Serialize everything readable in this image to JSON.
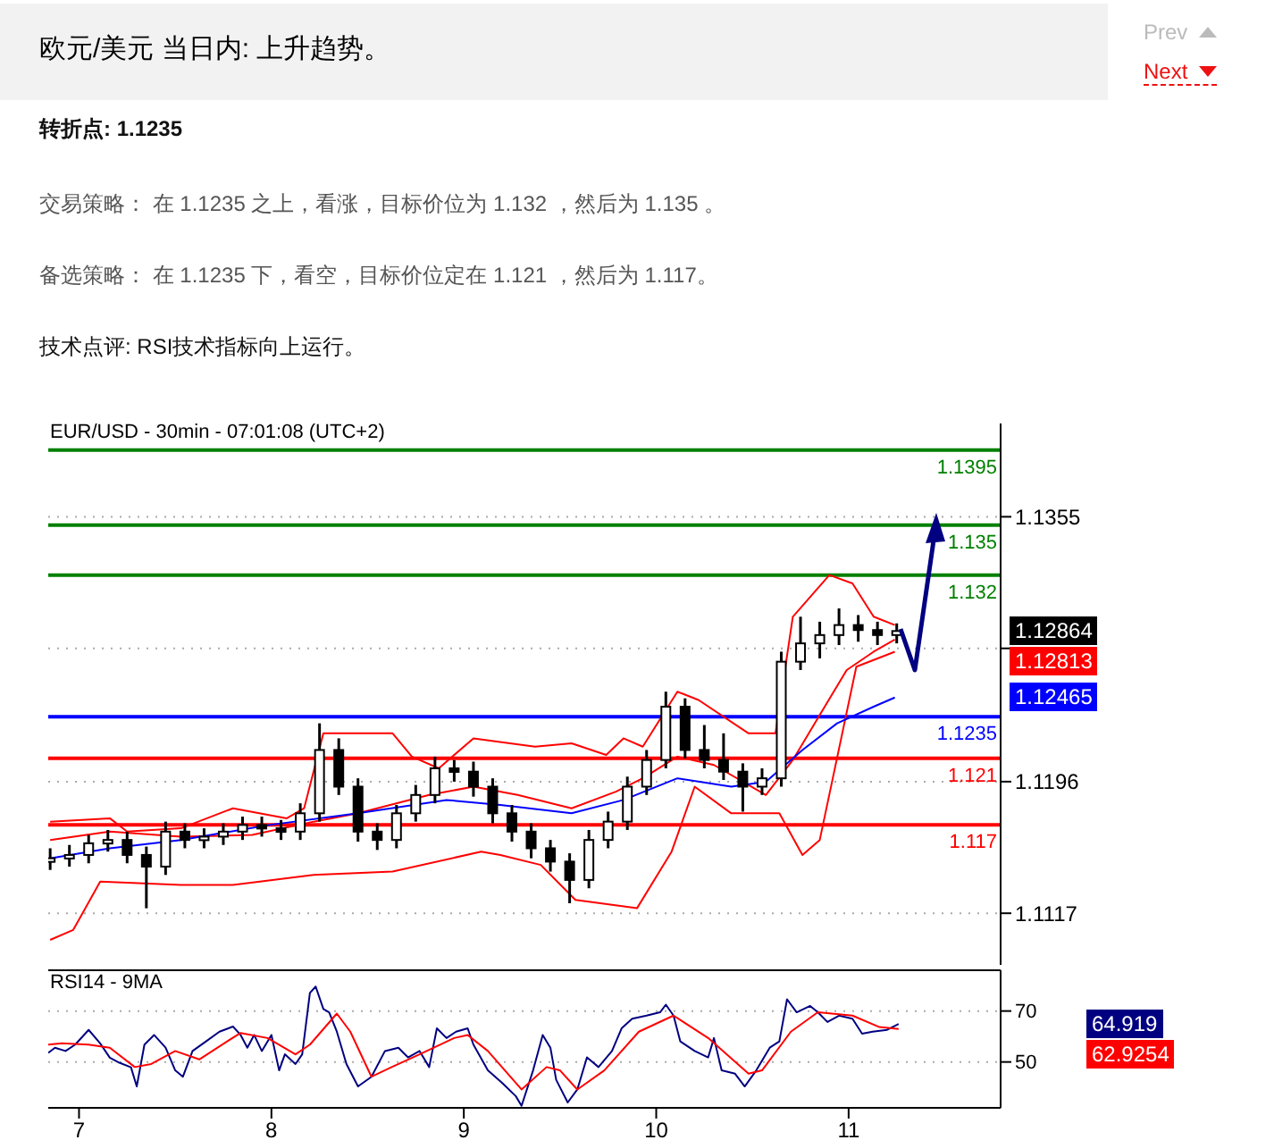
{
  "chart_data": [
    {
      "type": "candlestick",
      "title": "欧元/美元 当日内: 上升趋势。",
      "subtitle": "EUR/USD - 30min - 07:01:08 (UTC+2)",
      "annotations": [
        "转折点: 1.1235",
        "交易策略： 在 1.1235 之上，看涨，目标价位为 1.132 ，然后为 1.135 。",
        "备选策略： 在 1.1235 下，看空，目标价位定在 1.121 ，然后为 1.117。",
        "技术点评: RSI技术指标向上运行。",
        "Prev",
        "Next",
        "1.12864",
        "1.12813",
        "1.12465"
      ],
      "x": [
        6.85,
        6.95,
        7.05,
        7.15,
        7.25,
        7.35,
        7.45,
        7.55,
        7.65,
        7.75,
        7.85,
        7.95,
        8.05,
        8.15,
        8.25,
        8.35,
        8.45,
        8.55,
        8.65,
        8.75,
        8.85,
        8.95,
        9.05,
        9.15,
        9.25,
        9.35,
        9.45,
        9.55,
        9.65,
        9.75,
        9.85,
        9.95,
        10.05,
        10.15,
        10.25,
        10.35,
        10.45,
        10.55,
        10.65,
        10.75,
        10.85,
        10.95,
        11.05,
        11.15,
        11.25
      ],
      "ohlc": [
        [
          1.1148,
          1.1156,
          1.1143,
          1.115
        ],
        [
          1.115,
          1.1158,
          1.1145,
          1.1152
        ],
        [
          1.1152,
          1.1164,
          1.1147,
          1.1159
        ],
        [
          1.1159,
          1.1167,
          1.1154,
          1.1161
        ],
        [
          1.1161,
          1.1166,
          1.1147,
          1.1152
        ],
        [
          1.1152,
          1.1157,
          1.112,
          1.1145
        ],
        [
          1.1145,
          1.1172,
          1.114,
          1.1166
        ],
        [
          1.1166,
          1.1171,
          1.1156,
          1.1161
        ],
        [
          1.1161,
          1.1168,
          1.1156,
          1.1163
        ],
        [
          1.1163,
          1.1171,
          1.1158,
          1.1166
        ],
        [
          1.1166,
          1.1175,
          1.1161,
          1.117
        ],
        [
          1.117,
          1.1175,
          1.1163,
          1.1168
        ],
        [
          1.1168,
          1.1173,
          1.1161,
          1.1166
        ],
        [
          1.1166,
          1.1183,
          1.1161,
          1.1177
        ],
        [
          1.1177,
          1.1231,
          1.1172,
          1.1215
        ],
        [
          1.1215,
          1.1222,
          1.1188,
          1.1193
        ],
        [
          1.1193,
          1.1198,
          1.116,
          1.1166
        ],
        [
          1.1166,
          1.1171,
          1.1155,
          1.1161
        ],
        [
          1.1161,
          1.1182,
          1.1156,
          1.1177
        ],
        [
          1.1177,
          1.1194,
          1.1172,
          1.1188
        ],
        [
          1.1188,
          1.1211,
          1.1183,
          1.1204
        ],
        [
          1.1204,
          1.1209,
          1.1196,
          1.1202
        ],
        [
          1.1202,
          1.1208,
          1.1187,
          1.1193
        ],
        [
          1.1193,
          1.1198,
          1.1171,
          1.1177
        ],
        [
          1.1177,
          1.1182,
          1.116,
          1.1166
        ],
        [
          1.1166,
          1.1171,
          1.115,
          1.1156
        ],
        [
          1.1156,
          1.1161,
          1.1142,
          1.1148
        ],
        [
          1.1148,
          1.1153,
          1.1123,
          1.1137
        ],
        [
          1.1137,
          1.1167,
          1.1132,
          1.1161
        ],
        [
          1.1161,
          1.1178,
          1.1156,
          1.1172
        ],
        [
          1.1172,
          1.1199,
          1.1167,
          1.1193
        ],
        [
          1.1193,
          1.1215,
          1.1188,
          1.1209
        ],
        [
          1.1209,
          1.125,
          1.1204,
          1.1241
        ],
        [
          1.1241,
          1.1246,
          1.121,
          1.1215
        ],
        [
          1.1215,
          1.123,
          1.1204,
          1.1209
        ],
        [
          1.1209,
          1.1225,
          1.1197,
          1.1202
        ],
        [
          1.1202,
          1.1207,
          1.1178,
          1.1193
        ],
        [
          1.1193,
          1.1204,
          1.1188,
          1.1198
        ],
        [
          1.1198,
          1.1274,
          1.1193,
          1.1268
        ],
        [
          1.1268,
          1.1295,
          1.1263,
          1.1279
        ],
        [
          1.1279,
          1.1292,
          1.127,
          1.1284
        ],
        [
          1.1284,
          1.13,
          1.1278,
          1.129
        ],
        [
          1.129,
          1.1296,
          1.128,
          1.1287
        ],
        [
          1.1287,
          1.1292,
          1.1278,
          1.1284
        ],
        [
          1.1284,
          1.1291,
          1.1279,
          1.12864
        ]
      ],
      "series": [
        {
          "type": "line",
          "color": "#ff0000",
          "x": [
            6.85,
            7.16,
            7.25,
            7.53,
            7.8,
            8.08,
            8.17,
            8.27,
            8.63,
            8.73,
            8.87,
            9.05,
            9.37,
            9.56,
            9.74,
            9.83,
            9.93,
            10.11,
            10.22,
            10.48,
            10.62,
            10.71,
            10.9,
            11.02,
            11.13,
            11.24
          ],
          "values": [
            1.1172,
            1.1174,
            1.1166,
            1.1168,
            1.118,
            1.1174,
            1.118,
            1.1225,
            1.1225,
            1.1211,
            1.1204,
            1.1222,
            1.1217,
            1.1219,
            1.1212,
            1.1222,
            1.1217,
            1.125,
            1.1245,
            1.1225,
            1.1225,
            1.1295,
            1.132,
            1.1315,
            1.1295,
            1.129
          ]
        },
        {
          "type": "line",
          "color": "#ff0000",
          "x": [
            6.85,
            6.97,
            7.11,
            7.53,
            7.8,
            8.22,
            8.63,
            9.09,
            9.19,
            9.4,
            9.58,
            9.9,
            10.08,
            10.2,
            10.39,
            10.64,
            10.76,
            10.85,
            11.04,
            11.24
          ],
          "values": [
            1.1101,
            1.1107,
            1.1136,
            1.1134,
            1.1134,
            1.114,
            1.1142,
            1.1154,
            1.1152,
            1.1146,
            1.1125,
            1.112,
            1.1154,
            1.1193,
            1.1177,
            1.1177,
            1.1152,
            1.1161,
            1.1265,
            1.1274
          ]
        },
        {
          "type": "line",
          "color": "#ff0000",
          "x": [
            6.85,
            7.16,
            7.53,
            7.9,
            8.22,
            8.45,
            8.82,
            9.05,
            9.28,
            9.56,
            9.79,
            9.93,
            10.11,
            10.3,
            10.57,
            10.71,
            10.85,
            10.99,
            11.13,
            11.24
          ],
          "values": [
            1.1161,
            1.1166,
            1.1163,
            1.1164,
            1.1172,
            1.1177,
            1.1188,
            1.1193,
            1.1188,
            1.118,
            1.119,
            1.1198,
            1.1211,
            1.1206,
            1.1188,
            1.1209,
            1.1236,
            1.1263,
            1.1274,
            1.12813
          ]
        },
        {
          "type": "line",
          "color": "#0000ff",
          "x": [
            6.85,
            7.16,
            7.53,
            7.99,
            8.45,
            8.91,
            9.19,
            9.56,
            9.83,
            10.11,
            10.39,
            10.57,
            10.76,
            10.94,
            11.13,
            11.24
          ],
          "values": [
            1.115,
            1.1156,
            1.1161,
            1.117,
            1.1177,
            1.1185,
            1.1182,
            1.1177,
            1.1185,
            1.1198,
            1.1193,
            1.1196,
            1.1215,
            1.1231,
            1.1241,
            1.12465
          ]
        }
      ],
      "ref_lines": [
        {
          "axis": "y",
          "value": 1.1395,
          "label": "1.1395",
          "color": "#008000"
        },
        {
          "axis": "y",
          "value": 1.135,
          "label": "1.135",
          "color": "#008000"
        },
        {
          "axis": "y",
          "value": 1.132,
          "label": "1.132",
          "color": "#008000"
        },
        {
          "axis": "y",
          "value": 1.1235,
          "label": "1.1235",
          "color": "#0000ff"
        },
        {
          "axis": "y",
          "value": 1.121,
          "label": "1.121",
          "color": "#ff0000"
        },
        {
          "axis": "y",
          "value": 1.117,
          "label": "1.117",
          "color": "#ff0000"
        }
      ],
      "xlim": [
        6.84,
        11.79
      ],
      "ylim": [
        1.1086,
        1.1411
      ],
      "yticks": [
        1.1355,
        {
          "value": 1.1276,
          "label": null
        },
        1.1196,
        1.1117
      ],
      "grid": "y",
      "tick_labels": "y"
    },
    {
      "type": "line",
      "title": "RSI14 - 9MA",
      "annotations": [
        "64.919",
        "62.9254"
      ],
      "series": [
        {
          "color": "#000080",
          "x": [
            6.84,
            6.875,
            6.93,
            6.98,
            7.05,
            7.11,
            7.16,
            7.21,
            7.27,
            7.3,
            7.34,
            7.39,
            7.45,
            7.5,
            7.54,
            7.59,
            7.66,
            7.73,
            7.8,
            7.84,
            7.875,
            7.91,
            7.95,
            8.0,
            8.04,
            8.07,
            8.125,
            8.16,
            8.2,
            8.23,
            8.27,
            8.3,
            8.34,
            8.39,
            8.45,
            8.52,
            8.59,
            8.66,
            8.71,
            8.77,
            8.82,
            8.86,
            8.91,
            8.96,
            9.02,
            9.05,
            9.125,
            9.2,
            9.27,
            9.3,
            9.36,
            9.41,
            9.45,
            9.48,
            9.54,
            9.59,
            9.64,
            9.7,
            9.77,
            9.82,
            9.875,
            9.95,
            10.02,
            10.05,
            10.09,
            10.125,
            10.2,
            10.27,
            10.3,
            10.34,
            10.41,
            10.46,
            10.52,
            10.59,
            10.64,
            10.68,
            10.73,
            10.8,
            10.84,
            10.89,
            10.95,
            11.02,
            11.07,
            11.125,
            11.2,
            11.26
          ],
          "values": [
            53.6,
            55.6,
            54.3,
            56.8,
            62.6,
            57.3,
            51.7,
            49.7,
            47.9,
            40.4,
            56.8,
            60.6,
            55.6,
            46.7,
            44.2,
            54.3,
            58.1,
            61.9,
            63.9,
            60.6,
            55.6,
            60.6,
            54.3,
            60.6,
            46.7,
            53.0,
            49.2,
            53.0,
            77.1,
            79.6,
            70.8,
            69.5,
            61.9,
            49.2,
            40.4,
            44.2,
            54.3,
            55.6,
            51.8,
            54.3,
            48.0,
            63.2,
            59.4,
            61.9,
            63.2,
            56.8,
            46.7,
            41.7,
            36.6,
            32.8,
            46.7,
            60.6,
            55.6,
            43.0,
            34.1,
            39.2,
            51.8,
            48.0,
            54.3,
            63.2,
            67.0,
            68.2,
            69.5,
            72.5,
            68.2,
            58.1,
            54.3,
            51.8,
            59.4,
            46.7,
            45.4,
            40.4,
            46.7,
            55.6,
            58.1,
            74.6,
            69.5,
            72.0,
            69.5,
            65.7,
            68.2,
            67.0,
            61.1,
            61.9,
            62.6,
            64.919
          ]
        },
        {
          "color": "#ff0000",
          "x": [
            6.84,
            6.91,
            7.05,
            7.16,
            7.29,
            7.375,
            7.5,
            7.625,
            7.77,
            7.84,
            7.98,
            8.125,
            8.2,
            8.34,
            8.41,
            8.52,
            8.625,
            8.77,
            8.95,
            9.02,
            9.125,
            9.3,
            9.43,
            9.5,
            9.59,
            9.73,
            9.91,
            10.09,
            10.27,
            10.48,
            10.55,
            10.7,
            10.84,
            11.02,
            11.16,
            11.26
          ],
          "values": [
            56.8,
            57.3,
            56.8,
            55.6,
            48.0,
            49.2,
            54.3,
            51.0,
            58.1,
            61.4,
            59.4,
            53.0,
            56.8,
            69.0,
            61.9,
            44.2,
            48.0,
            53.0,
            59.4,
            60.6,
            54.3,
            39.2,
            48.0,
            46.7,
            39.2,
            46.7,
            61.9,
            68.2,
            59.4,
            45.4,
            46.7,
            61.9,
            69.5,
            68.2,
            63.7,
            62.9254
          ]
        }
      ],
      "xlim": [
        6.84,
        11.79
      ],
      "xticks": [
        7,
        8,
        9,
        10,
        11
      ],
      "ylim": [
        32,
        86
      ],
      "yticks": [
        70,
        50
      ],
      "grid": "y"
    }
  ]
}
